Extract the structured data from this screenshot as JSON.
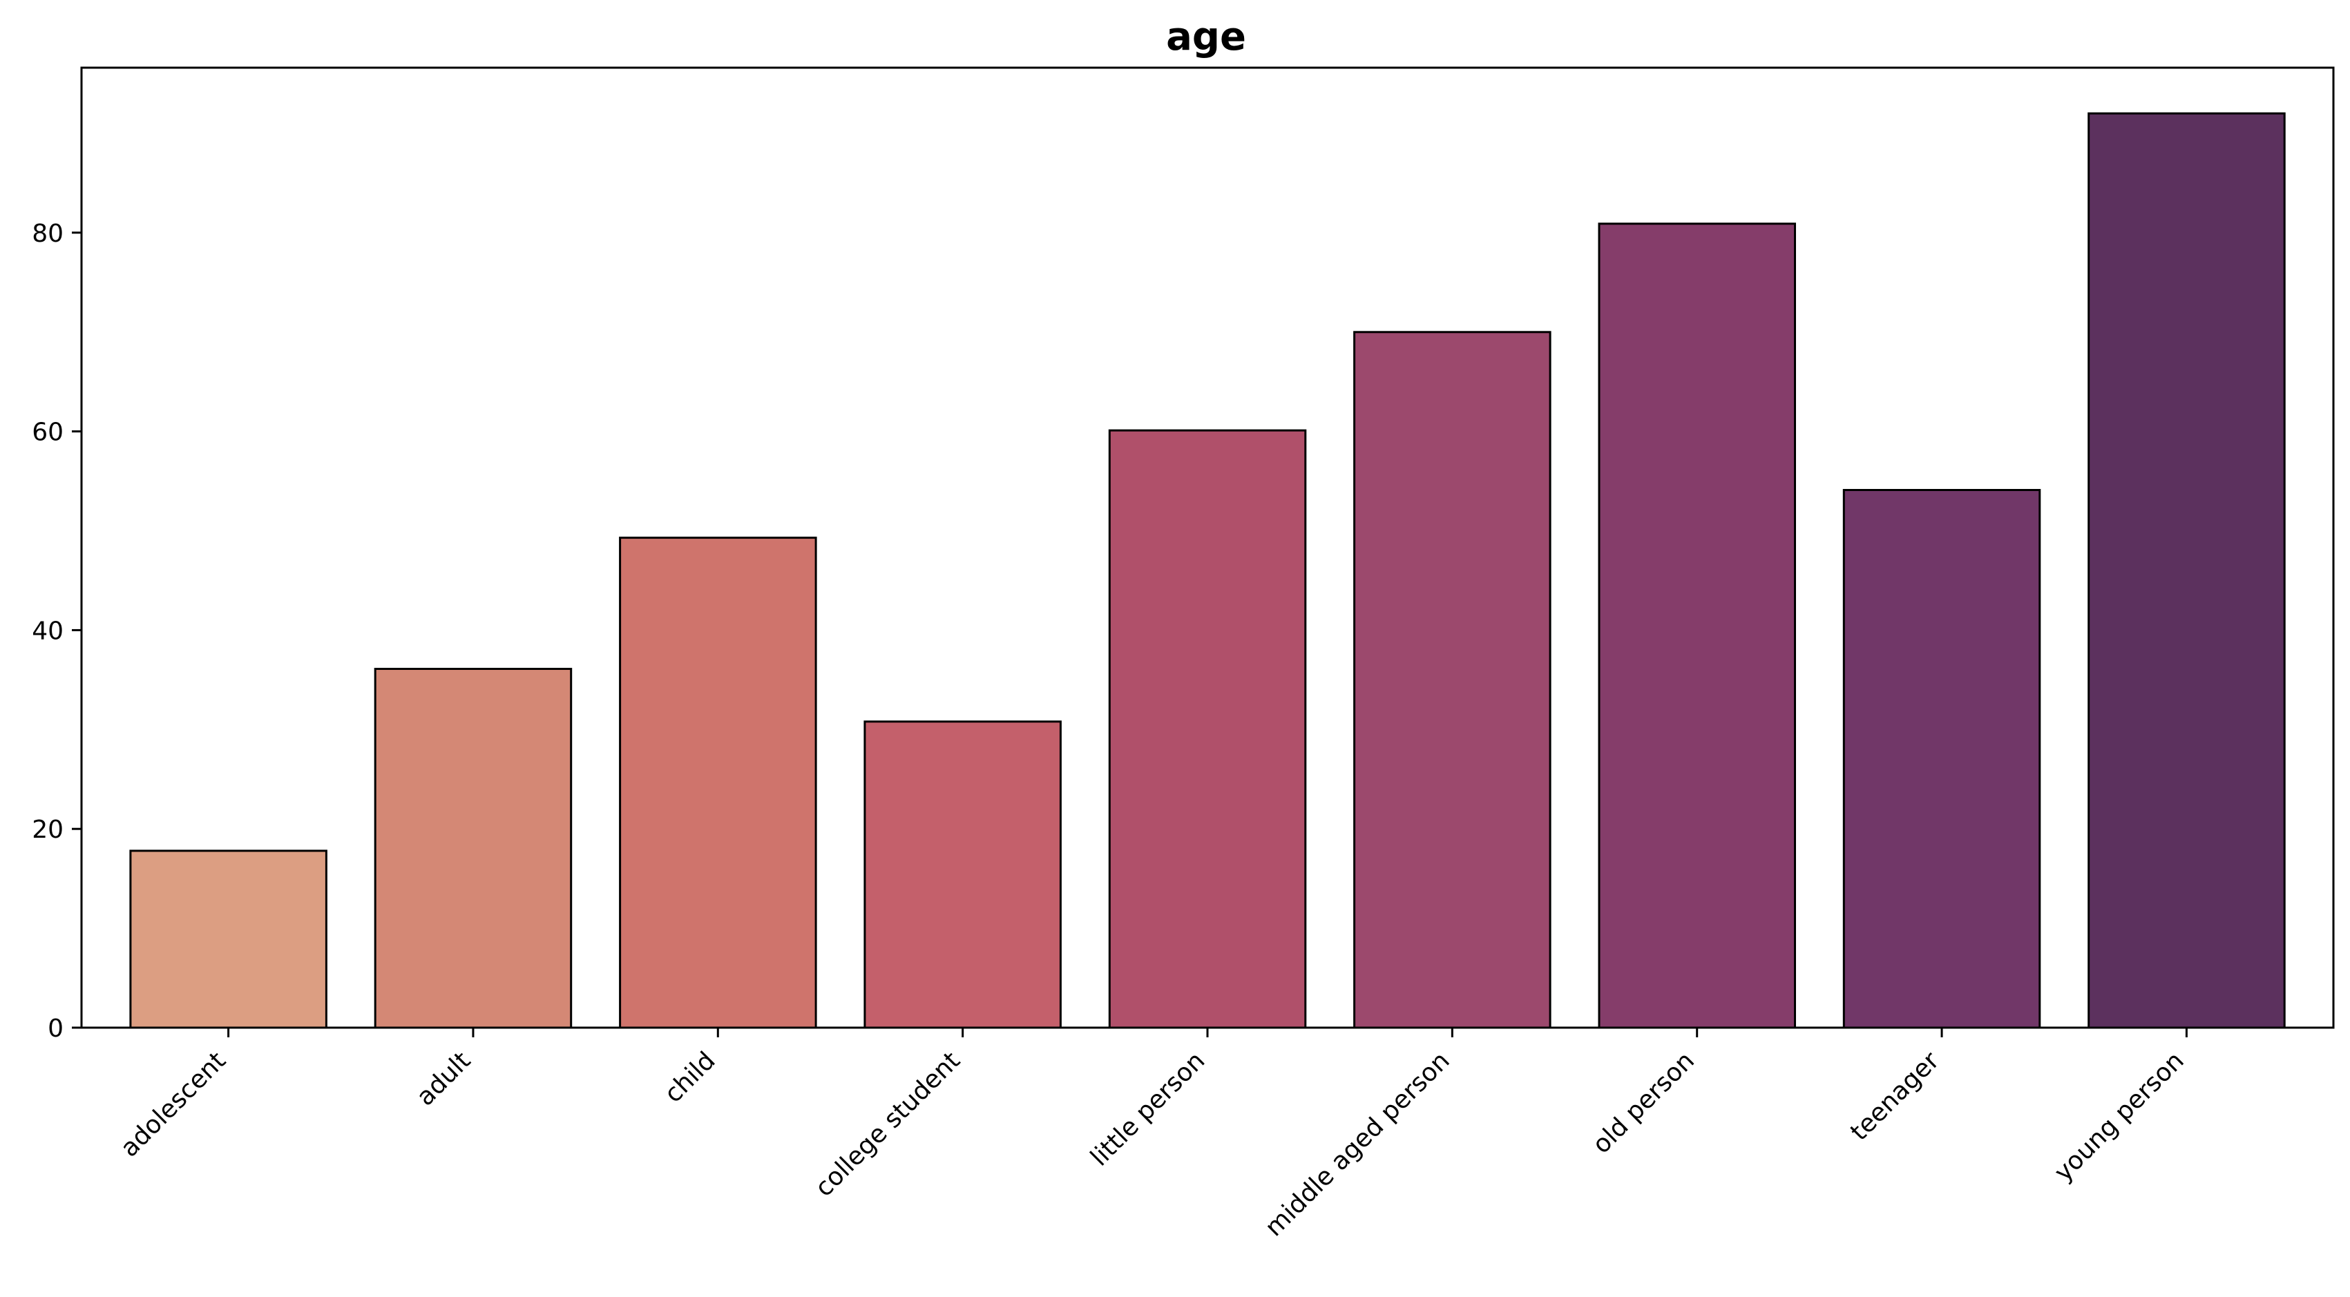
{
  "chart_data": {
    "type": "bar",
    "title": "age",
    "xlabel": "",
    "ylabel": "",
    "categories": [
      "adolescent",
      "adult",
      "child",
      "college student",
      "little person",
      "middle aged person",
      "old person",
      "teenager",
      "young person"
    ],
    "values": [
      17.8,
      36.1,
      49.3,
      30.8,
      60.1,
      70.0,
      80.9,
      54.1,
      92.0
    ],
    "colors": [
      "#dc9e82",
      "#d48875",
      "#cf746c",
      "#c4606b",
      "#b0506a",
      "#9c496d",
      "#853d6a",
      "#713768",
      "#5c315e"
    ],
    "yticks": [
      0,
      20,
      40,
      60,
      80
    ],
    "ylim": [
      0,
      96.6
    ],
    "grid": false,
    "legend": "none",
    "bar_edge_color": "#000000"
  }
}
